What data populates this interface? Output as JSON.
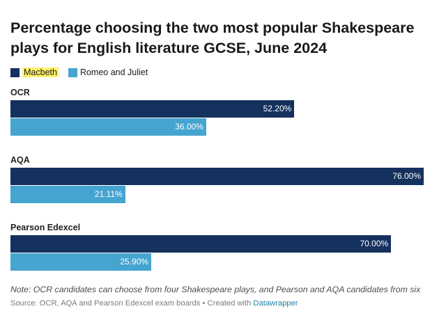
{
  "chart_data": {
    "type": "bar",
    "orientation": "horizontal",
    "title": "Percentage choosing the two most popular Shakespeare plays for English literature GCSE, June 2024",
    "categories": [
      "OCR",
      "AQA",
      "Pearson Edexcel"
    ],
    "series": [
      {
        "name": "Macbeth",
        "values": [
          52.2,
          76.0,
          70.0
        ],
        "labels": [
          "52.20%",
          "76.00%",
          "70.00%"
        ],
        "color": "#15315e"
      },
      {
        "name": "Romeo and Juliet",
        "values": [
          36.0,
          21.11,
          25.9
        ],
        "labels": [
          "36.00%",
          "21.11%",
          "25.90%"
        ],
        "color": "#45a4d0"
      }
    ],
    "xlim": [
      0,
      76
    ],
    "grid": false,
    "legend": "top-left",
    "legend_highlight": "Macbeth"
  },
  "footer": {
    "note": "Note: OCR candidates can choose from four Shakespeare plays, and Pearson and AQA candidates from six",
    "source_prefix": "Source: OCR, AQA and Pearson Edexcel exam boards • Created with ",
    "source_link": "Datawrapper"
  }
}
